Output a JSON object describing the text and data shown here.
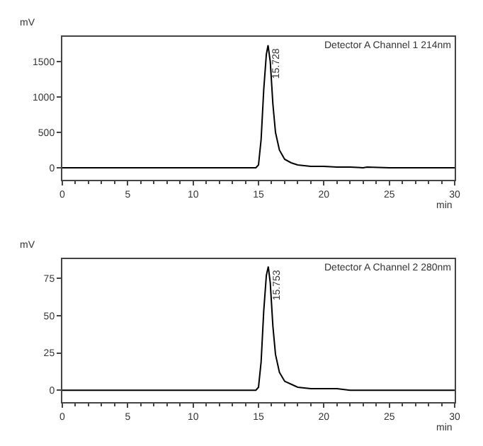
{
  "chart_data": [
    {
      "type": "line",
      "xlabel": "min",
      "ylabel": "mV",
      "x": [
        0,
        14,
        14.8,
        15.0,
        15.2,
        15.4,
        15.6,
        15.73,
        15.9,
        16.1,
        16.3,
        16.6,
        17,
        17.5,
        18,
        19,
        20,
        21,
        22,
        23,
        23.3,
        25,
        30
      ],
      "series": [
        {
          "color": "#000000",
          "values": [
            0,
            0,
            0,
            40,
            400,
            1100,
            1600,
            1730,
            1500,
            900,
            500,
            250,
            120,
            70,
            40,
            20,
            20,
            10,
            10,
            0,
            10,
            0,
            0
          ]
        }
      ],
      "xlim": [
        0,
        30
      ],
      "xticks": [
        0,
        5,
        10,
        15,
        20,
        25,
        30
      ],
      "ylim": [
        -170,
        1850
      ],
      "yticks": [
        0,
        500,
        1000,
        1500
      ],
      "grid": false,
      "line_style": "solid",
      "marker": "none",
      "annotations": [
        "Detector A Channel 1 214nm",
        {
          "text": "15.728",
          "x": 15.73,
          "y": 1733
        }
      ]
    },
    {
      "type": "line",
      "xlabel": "min",
      "ylabel": "mV",
      "x": [
        0,
        14,
        14.8,
        15.0,
        15.2,
        15.4,
        15.6,
        15.75,
        15.9,
        16.1,
        16.3,
        16.6,
        17,
        17.5,
        18,
        19,
        20,
        21,
        22,
        23,
        23.3,
        25,
        30
      ],
      "series": [
        {
          "color": "#000000",
          "values": [
            0,
            0,
            0,
            2,
            19,
            53,
            77,
            83,
            72,
            43,
            24,
            12,
            6,
            4,
            2,
            1,
            1,
            1,
            0,
            0,
            0,
            0,
            0
          ]
        }
      ],
      "xlim": [
        0,
        30
      ],
      "xticks": [
        0,
        5,
        10,
        15,
        20,
        25,
        30
      ],
      "ylim": [
        -8,
        88
      ],
      "yticks": [
        0,
        25,
        50,
        75
      ],
      "grid": false,
      "line_style": "solid",
      "marker": "none",
      "annotations": [
        "Detector A Channel 2 280nm",
        {
          "text": "15.753",
          "x": 15.75,
          "y": 83
        }
      ]
    }
  ]
}
